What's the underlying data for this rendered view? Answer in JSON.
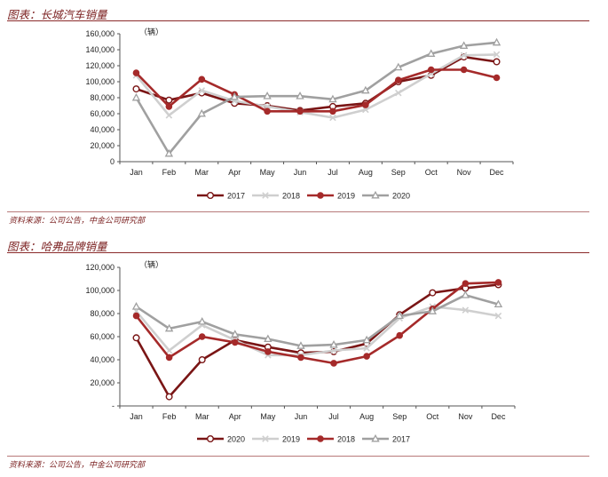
{
  "chart_data": [
    {
      "type": "line",
      "title": "图表：长城汽车销量",
      "unit": "（辆）",
      "source": "资料来源：公司公告，中金公司研究部",
      "categories": [
        "Jan",
        "Feb",
        "Mar",
        "Apr",
        "May",
        "Jun",
        "Jul",
        "Aug",
        "Sep",
        "Oct",
        "Nov",
        "Dec"
      ],
      "ylim": [
        0,
        160000
      ],
      "yticks": [
        "0",
        "20,000",
        "40,000",
        "60,000",
        "80,000",
        "100,000",
        "120,000",
        "140,000",
        "160,000"
      ],
      "legend_position": "bottom",
      "series": [
        {
          "name": "2017",
          "color": "#7a1515",
          "marker": "circle-open",
          "values": [
            91000,
            77000,
            86000,
            73000,
            70000,
            64000,
            69000,
            73000,
            100000,
            108000,
            131000,
            125000
          ]
        },
        {
          "name": "2018",
          "color": "#cfcfcf",
          "marker": "x",
          "values": [
            108000,
            58000,
            89000,
            76000,
            69000,
            62000,
            55000,
            65000,
            86000,
            110000,
            133000,
            134000
          ]
        },
        {
          "name": "2019",
          "color": "#a52a2a",
          "marker": "circle",
          "values": [
            111000,
            69000,
            103000,
            84000,
            63000,
            63000,
            63000,
            71000,
            102000,
            115000,
            115000,
            105000
          ]
        },
        {
          "name": "2020",
          "color": "#a0a0a0",
          "marker": "triangle-open",
          "values": [
            80000,
            10000,
            60000,
            81000,
            82000,
            82000,
            78000,
            89000,
            118000,
            135000,
            145000,
            149000
          ]
        }
      ]
    },
    {
      "type": "line",
      "title": "图表：哈弗品牌销量",
      "unit": "（辆）",
      "source": "资料来源：公司公告，中金公司研究部",
      "categories": [
        "Jan",
        "Feb",
        "Mar",
        "Apr",
        "May",
        "Jun",
        "Jul",
        "Aug",
        "Sep",
        "Oct",
        "Nov",
        "Dec"
      ],
      "ylim": [
        0,
        120000
      ],
      "yticks": [
        "-",
        "20,000",
        "40,000",
        "60,000",
        "80,000",
        "100,000",
        "120,000"
      ],
      "legend_position": "bottom",
      "series": [
        {
          "name": "2020",
          "color": "#7a1515",
          "marker": "circle-open",
          "values": [
            59000,
            8000,
            40000,
            57000,
            51000,
            46000,
            47000,
            54000,
            79000,
            98000,
            102000,
            105000
          ]
        },
        {
          "name": "2019",
          "color": "#cfcfcf",
          "marker": "x",
          "values": [
            82000,
            48000,
            70000,
            57000,
            44000,
            44000,
            48000,
            50000,
            76000,
            86000,
            83000,
            78000
          ]
        },
        {
          "name": "2018",
          "color": "#a52a2a",
          "marker": "circle",
          "values": [
            78000,
            42000,
            60000,
            55000,
            47000,
            42000,
            37000,
            43000,
            61000,
            84000,
            106000,
            107000
          ]
        },
        {
          "name": "2017",
          "color": "#a0a0a0",
          "marker": "triangle-open",
          "values": [
            86000,
            67000,
            73000,
            62000,
            58000,
            52000,
            53000,
            57000,
            78000,
            82000,
            96000,
            88000
          ]
        }
      ]
    }
  ]
}
